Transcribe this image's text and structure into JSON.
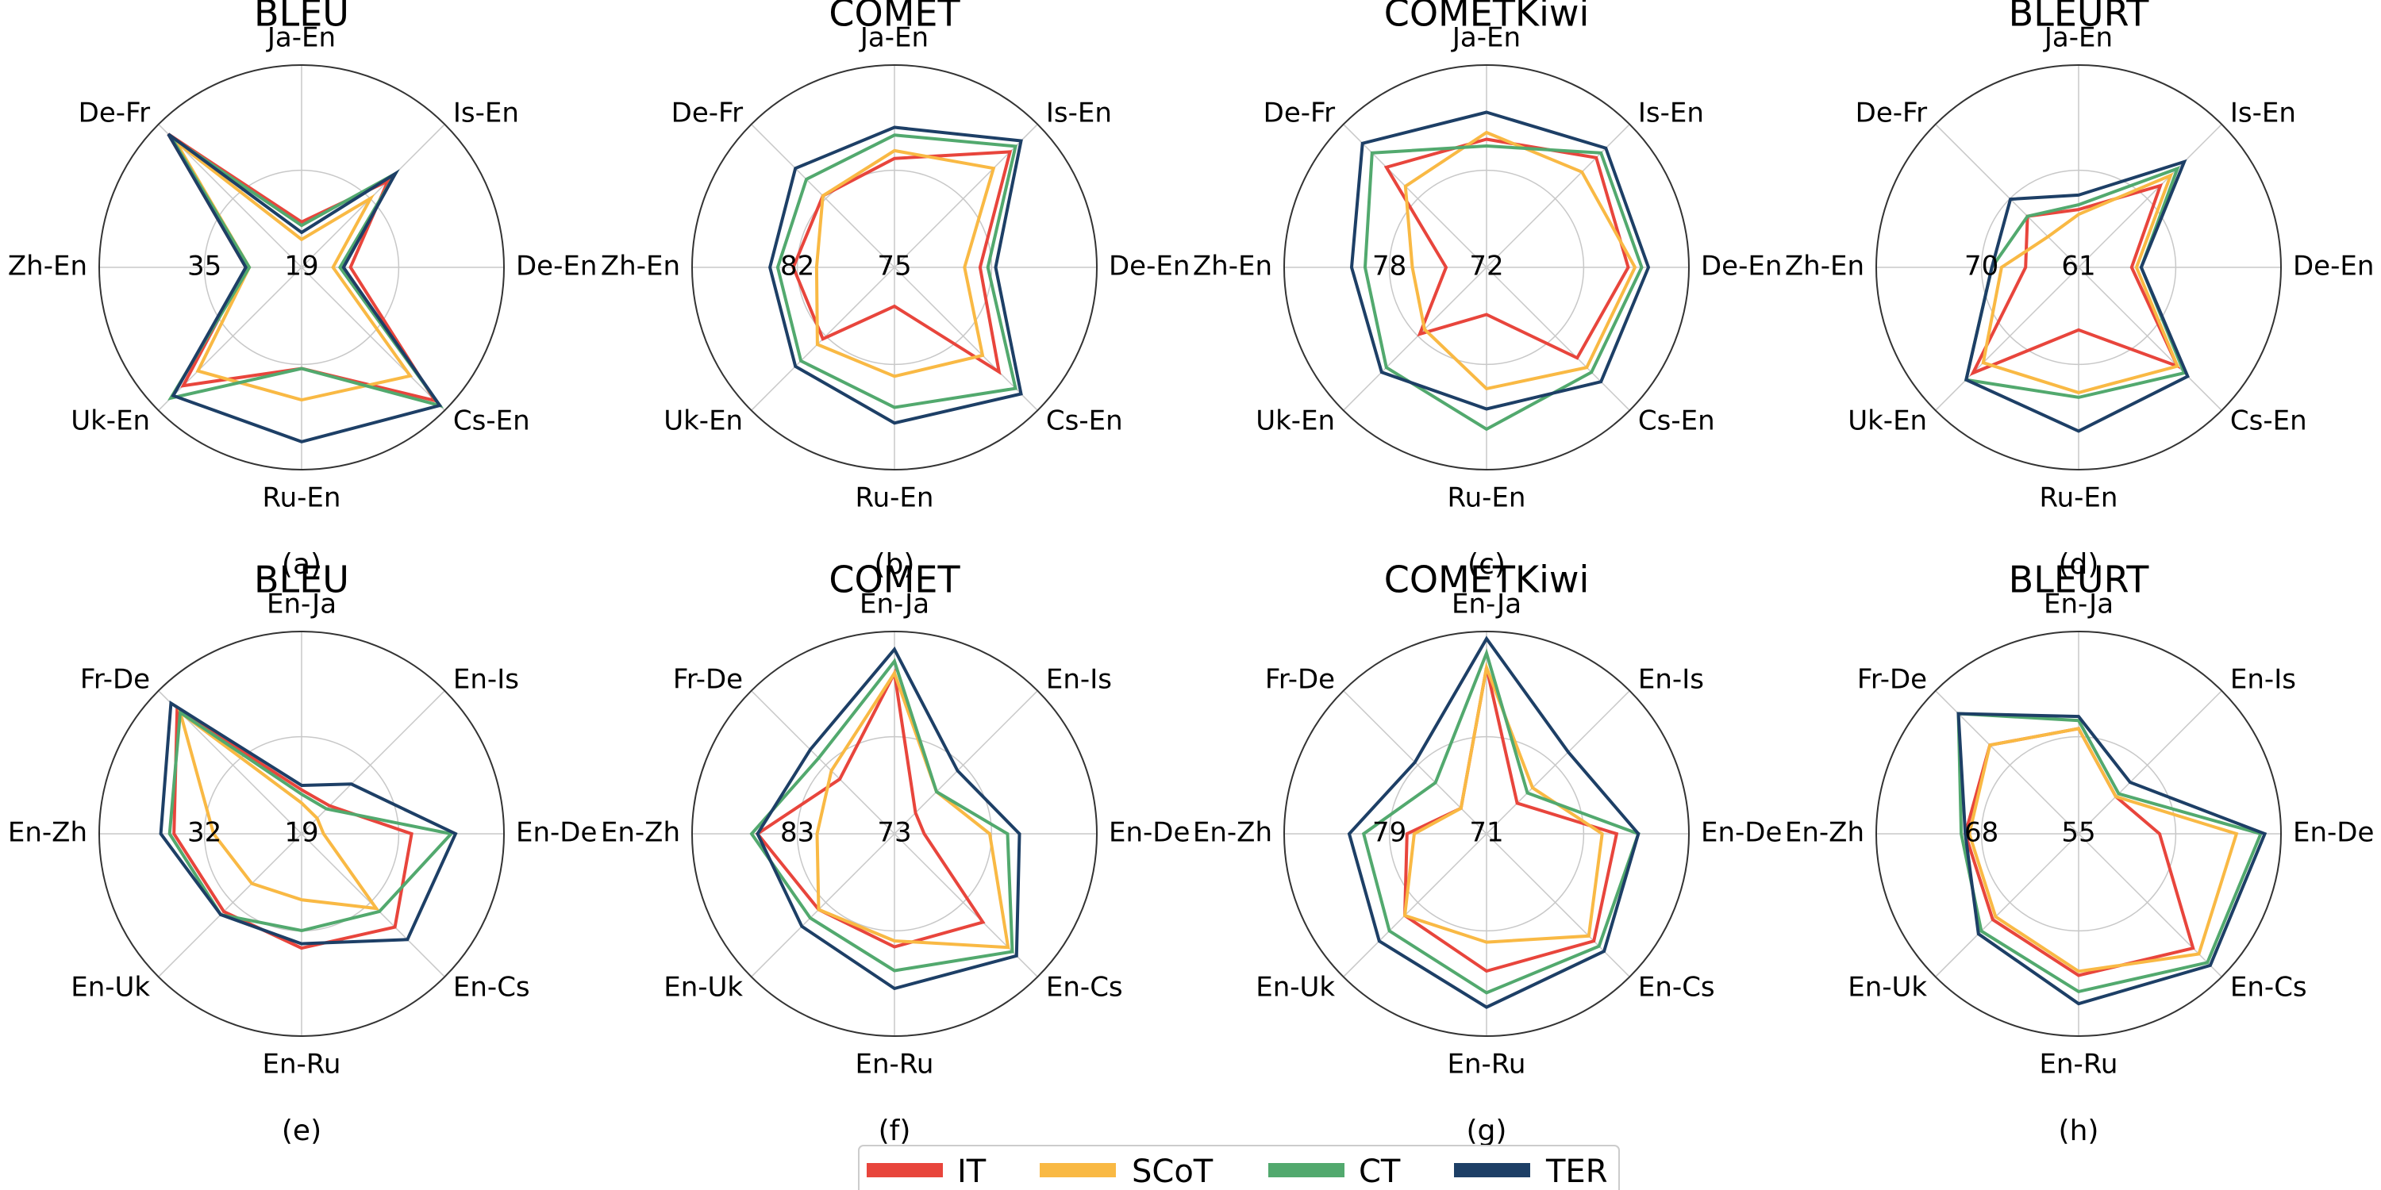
{
  "chart_data": [
    {
      "type": "radar",
      "title": "BLEU",
      "subtitle": "(a)",
      "axes": [
        "Ja-En",
        "Is-En",
        "De-En",
        "Cs-En",
        "Ru-En",
        "Uk-En",
        "Zh-En",
        "De-Fr"
      ],
      "ticks": [
        "19",
        "35"
      ],
      "rmin": 16,
      "rmax": 45,
      "series": [
        {
          "name": "IT",
          "values": [
            22.5,
            33.5,
            23.0,
            43.0,
            30.5,
            40.0,
            24.0,
            43.0
          ]
        },
        {
          "name": "SCoT",
          "values": [
            20.0,
            30.0,
            20.5,
            38.0,
            35.0,
            37.0,
            23.5,
            41.5
          ]
        },
        {
          "name": "CT",
          "values": [
            22.0,
            35.0,
            21.5,
            44.0,
            30.5,
            42.5,
            23.5,
            42.5
          ]
        },
        {
          "name": "TER",
          "values": [
            21.0,
            35.0,
            22.0,
            44.0,
            41.0,
            42.0,
            24.0,
            43.0
          ]
        }
      ]
    },
    {
      "type": "radar",
      "title": "COMET",
      "subtitle": "(b)",
      "axes": [
        "Ja-En",
        "Is-En",
        "De-En",
        "Cs-En",
        "Ru-En",
        "Uk-En",
        "Zh-En",
        "De-Fr"
      ],
      "ticks": [
        "75",
        "82"
      ],
      "rmin": 73.5,
      "rmax": 86.5,
      "series": [
        {
          "name": "IT",
          "values": [
            80.5,
            84.0,
            79.0,
            83.0,
            76.0,
            80.0,
            80.0,
            80.0
          ]
        },
        {
          "name": "SCoT",
          "values": [
            81.0,
            82.5,
            78.0,
            81.5,
            80.5,
            80.5,
            78.5,
            80.0
          ]
        },
        {
          "name": "CT",
          "values": [
            82.0,
            84.5,
            79.5,
            84.5,
            82.5,
            82.0,
            81.0,
            81.5
          ]
        },
        {
          "name": "TER",
          "values": [
            82.5,
            85.0,
            80.0,
            85.0,
            83.5,
            82.5,
            81.5,
            82.5
          ]
        }
      ]
    },
    {
      "type": "radar",
      "title": "COMETKiwi",
      "subtitle": "(c)",
      "axes": [
        "Ja-En",
        "Is-En",
        "De-En",
        "Cs-En",
        "Ru-En",
        "Uk-En",
        "Zh-En",
        "De-Fr"
      ],
      "ticks": [
        "72",
        "78"
      ],
      "rmin": 69.5,
      "rmax": 84.5,
      "series": [
        {
          "name": "IT",
          "values": [
            79.0,
            81.0,
            80.0,
            79.0,
            73.0,
            76.5,
            72.5,
            80.0
          ]
        },
        {
          "name": "SCoT",
          "values": [
            79.5,
            79.5,
            80.5,
            80.0,
            78.5,
            76.0,
            75.0,
            78.0
          ]
        },
        {
          "name": "CT",
          "values": [
            78.5,
            81.5,
            81.0,
            80.5,
            81.5,
            80.0,
            78.5,
            81.5
          ]
        },
        {
          "name": "TER",
          "values": [
            81.0,
            82.0,
            81.5,
            81.5,
            80.0,
            80.5,
            79.5,
            82.5
          ]
        }
      ]
    },
    {
      "type": "radar",
      "title": "BLEURT",
      "subtitle": "(d)",
      "axes": [
        "Ja-En",
        "Is-En",
        "De-En",
        "Cs-En",
        "Ru-En",
        "Uk-En",
        "Zh-En",
        "De-Fr"
      ],
      "ticks": [
        "61",
        "70"
      ],
      "rmin": 58,
      "rmax": 79,
      "series": [
        {
          "name": "IT",
          "values": [
            64.0,
            70.0,
            63.5,
            72.5,
            64.5,
            73.5,
            63.5,
            65.5
          ]
        },
        {
          "name": "SCoT",
          "values": [
            63.5,
            71.5,
            64.0,
            72.5,
            71.0,
            72.0,
            66.0,
            62.5
          ]
        },
        {
          "name": "CT",
          "values": [
            64.5,
            72.5,
            64.5,
            73.5,
            71.5,
            74.5,
            67.0,
            65.5
          ]
        },
        {
          "name": "TER",
          "values": [
            65.5,
            73.5,
            64.5,
            74.0,
            75.0,
            74.5,
            67.0,
            68.0
          ]
        }
      ]
    },
    {
      "type": "radar",
      "title": "BLEU",
      "subtitle": "(e)",
      "axes": [
        "En-Ja",
        "En-Is",
        "En-De",
        "En-Cs",
        "En-Ru",
        "En-Uk",
        "En-Zh",
        "Fr-De"
      ],
      "ticks": [
        "19",
        "32"
      ],
      "rmin": 16,
      "rmax": 39,
      "series": [
        {
          "name": "IT",
          "values": [
            21.0,
            20.5,
            28.5,
            31.0,
            29.0,
            28.5,
            30.5,
            36.0
          ]
        },
        {
          "name": "SCoT",
          "values": [
            19.5,
            18.5,
            18.5,
            28.0,
            23.5,
            24.0,
            26.0,
            35.5
          ]
        },
        {
          "name": "CT",
          "values": [
            20.5,
            20.0,
            33.0,
            28.5,
            27.0,
            29.0,
            31.0,
            35.5
          ]
        },
        {
          "name": "TER",
          "values": [
            21.5,
            24.0,
            33.5,
            33.0,
            28.5,
            29.0,
            32.0,
            37.0
          ]
        }
      ]
    },
    {
      "type": "radar",
      "title": "COMET",
      "subtitle": "(f)",
      "axes": [
        "En-Ja",
        "En-Is",
        "En-De",
        "En-Cs",
        "En-Ru",
        "En-Uk",
        "En-Zh",
        "Fr-De"
      ],
      "ticks": [
        "73",
        "83"
      ],
      "rmin": 71.5,
      "rmax": 88.5,
      "series": [
        {
          "name": "IT",
          "values": [
            85.0,
            74.0,
            74.0,
            82.0,
            81.0,
            80.5,
            83.0,
            78.0
          ]
        },
        {
          "name": "SCoT",
          "values": [
            85.0,
            76.5,
            79.5,
            85.0,
            80.5,
            80.5,
            78.0,
            79.0
          ]
        },
        {
          "name": "CT",
          "values": [
            86.0,
            76.5,
            81.0,
            85.5,
            83.0,
            81.5,
            83.5,
            80.5
          ]
        },
        {
          "name": "TER",
          "values": [
            87.0,
            79.0,
            82.0,
            86.0,
            84.5,
            82.5,
            83.0,
            81.5
          ]
        }
      ]
    },
    {
      "type": "radar",
      "title": "COMETKiwi",
      "subtitle": "(g)",
      "axes": [
        "En-Ja",
        "En-Is",
        "En-De",
        "En-Cs",
        "En-Ru",
        "En-Uk",
        "En-Zh",
        "Fr-De"
      ],
      "ticks": [
        "71",
        "79"
      ],
      "rmin": 69.5,
      "rmax": 83.5,
      "series": [
        {
          "name": "IT",
          "values": [
            81.0,
            72.5,
            78.5,
            80.0,
            79.0,
            77.5,
            75.0,
            72.0
          ]
        },
        {
          "name": "SCoT",
          "values": [
            81.0,
            74.0,
            77.5,
            79.5,
            77.0,
            77.5,
            74.5,
            72.0
          ]
        },
        {
          "name": "CT",
          "values": [
            82.0,
            73.5,
            80.0,
            80.5,
            80.5,
            79.0,
            78.0,
            74.5
          ]
        },
        {
          "name": "TER",
          "values": [
            83.0,
            77.5,
            80.0,
            81.0,
            81.5,
            80.0,
            79.0,
            76.5
          ]
        }
      ]
    },
    {
      "type": "radar",
      "title": "BLEURT",
      "subtitle": "(h)",
      "axes": [
        "En-Ja",
        "En-Is",
        "En-De",
        "En-Cs",
        "En-Ru",
        "En-Uk",
        "En-Zh",
        "Fr-De"
      ],
      "ticks": [
        "55",
        "68"
      ],
      "rmin": 52,
      "rmax": 77,
      "series": [
        {
          "name": "IT",
          "values": [
            65.0,
            58.5,
            62.0,
            72.0,
            69.5,
            67.0,
            66.0,
            67.5
          ]
        },
        {
          "name": "SCoT",
          "values": [
            65.0,
            58.5,
            71.5,
            73.0,
            69.0,
            66.5,
            65.5,
            67.5
          ]
        },
        {
          "name": "CT",
          "values": [
            66.0,
            59.0,
            74.5,
            74.5,
            71.5,
            69.0,
            66.5,
            73.0
          ]
        },
        {
          "name": "TER",
          "values": [
            66.5,
            61.0,
            75.0,
            75.0,
            73.0,
            69.5,
            66.0,
            73.0
          ]
        }
      ]
    }
  ],
  "legend": {
    "position": "bottom-center",
    "items": [
      {
        "name": "IT",
        "color": "#e8453c"
      },
      {
        "name": "SCoT",
        "color": "#f9b944"
      },
      {
        "name": "CT",
        "color": "#52a96e"
      },
      {
        "name": "TER",
        "color": "#1d3f66"
      }
    ]
  },
  "colors": {
    "outer_ring": "#333333",
    "grid": "#c8c8c8"
  }
}
